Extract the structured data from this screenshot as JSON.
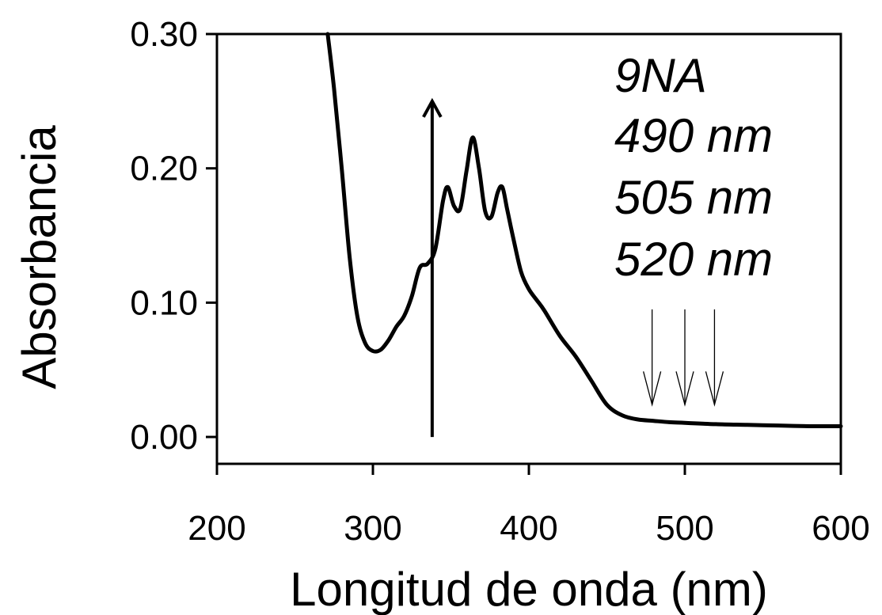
{
  "chart_data": {
    "type": "line",
    "title": "",
    "xlabel": "Longitud de onda (nm)",
    "ylabel": "Absorbancia",
    "xlim": [
      200,
      600
    ],
    "ylim": [
      -0.02,
      0.3
    ],
    "x_ticks": [
      200,
      300,
      400,
      500,
      600
    ],
    "x_tick_labels": [
      "200",
      "300",
      "400",
      "500",
      "600"
    ],
    "y_ticks": [
      0.0,
      0.1,
      0.2,
      0.3
    ],
    "y_tick_labels": [
      "0.00",
      "0.10",
      "0.20",
      "0.30"
    ],
    "grid": false,
    "legend": "none",
    "annotations": {
      "lines": [
        "9NA",
        "490 nm",
        "505 nm",
        "520 nm"
      ]
    },
    "up_arrow": {
      "x": 338,
      "y_from": 0.0,
      "y_to": 0.25
    },
    "down_arrows": [
      {
        "x": 479,
        "y_from": 0.095,
        "y_to": 0.024
      },
      {
        "x": 500,
        "y_from": 0.095,
        "y_to": 0.024
      },
      {
        "x": 519,
        "y_from": 0.095,
        "y_to": 0.024
      }
    ],
    "series": [
      {
        "x": [
          271,
          275,
          280,
          285,
          290,
          295,
          300,
          305,
          310,
          315,
          320,
          325,
          330,
          335,
          340,
          345,
          348,
          352,
          356,
          360,
          364,
          368,
          372,
          376,
          380,
          383,
          386,
          390,
          395,
          400,
          405,
          410,
          420,
          430,
          440,
          450,
          460,
          470,
          480,
          490,
          500,
          520,
          540,
          560,
          580,
          600
        ],
        "y": [
          0.3,
          0.26,
          0.2,
          0.135,
          0.09,
          0.07,
          0.064,
          0.065,
          0.072,
          0.082,
          0.09,
          0.105,
          0.126,
          0.129,
          0.14,
          0.176,
          0.186,
          0.172,
          0.17,
          0.198,
          0.223,
          0.2,
          0.168,
          0.164,
          0.182,
          0.186,
          0.17,
          0.148,
          0.123,
          0.11,
          0.102,
          0.094,
          0.075,
          0.06,
          0.042,
          0.024,
          0.016,
          0.013,
          0.012,
          0.011,
          0.0105,
          0.0095,
          0.009,
          0.0085,
          0.008,
          0.008
        ]
      }
    ]
  }
}
